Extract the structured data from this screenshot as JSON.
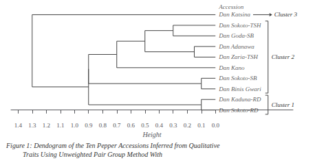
{
  "chart_data": {
    "type": "dendrogram",
    "title": "Figure 1: Dendogram of the Ten Pepper Accessions Inferred from Qualitative",
    "subtitle": "Traits Using Unweighted Pair Group Method With",
    "xlabel": "Height",
    "xlim": [
      1.45,
      -0.55
    ],
    "xticks": [
      {
        "value": 0,
        "label": "0.0"
      },
      0.1,
      0.2,
      0.3,
      0.4,
      0.5,
      0.6,
      0.7,
      0.8,
      0.9,
      {
        "value": 1,
        "label": "1.0"
      },
      1.1,
      1.2,
      1.3,
      1.4
    ],
    "tick_labels": "x",
    "grid": false,
    "color": "#444444",
    "leaf_title": "Accession",
    "tree": {
      "height": 1.3,
      "children": [
        {
          "name": "Dan Katsina",
          "label": "Cluster 3"
        },
        {
          "height": 0.9,
          "children": [
            {
              "height": 0.9,
              "label": "Cluster 2",
              "children": [
                {
                  "height": 0.7,
                  "children": [
                    {
                      "height": 0.5,
                      "children": [
                        {
                          "height": 0.3,
                          "children": [
                            "Dan Sokoto-TSH",
                            "Dan Goda-SB"
                          ]
                        },
                        {
                          "height": 0.15,
                          "children": [
                            "Dan Adanawa",
                            "Dan Zaria-TSH"
                          ]
                        }
                      ]
                    },
                    "Dan Kano"
                  ]
                },
                {
                  "height": 0.1,
                  "children": [
                    "Dan Sokoto-SB",
                    "Dan Binis Gwari"
                  ]
                }
              ]
            },
            {
              "height": 0.1,
              "label": "Cluster 1",
              "children": [
                "Dan Kaduna-RD",
                "Dan Sokoto-RD"
              ]
            }
          ]
        }
      ]
    }
  }
}
